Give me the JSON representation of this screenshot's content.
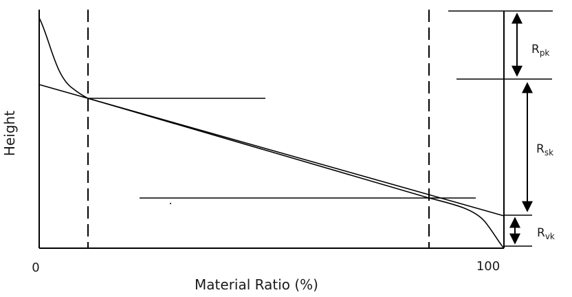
{
  "axes": {
    "y_label": "Height",
    "x_label": "Material Ratio (%)",
    "x_tick_start": "0",
    "x_tick_end": "100"
  },
  "parameters": [
    {
      "main": "R",
      "sub": "pk"
    },
    {
      "main": "R",
      "sub": "sk"
    },
    {
      "main": "R",
      "sub": "vk"
    }
  ]
}
